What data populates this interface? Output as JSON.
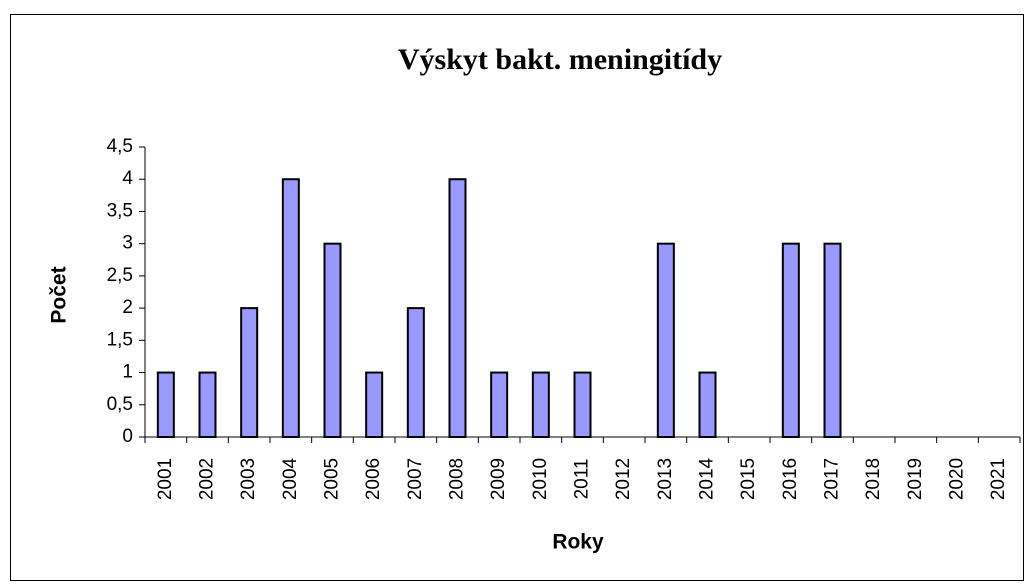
{
  "chart_data": {
    "type": "bar",
    "title": "Výskyt bakt. meningitídy",
    "x_label": "Roky",
    "y_label": "Počet",
    "categories": [
      "2001",
      "2002",
      "2003",
      "2004",
      "2005",
      "2006",
      "2007",
      "2008",
      "2009",
      "2010",
      "2011",
      "2012",
      "2013",
      "2014",
      "2015",
      "2016",
      "2017",
      "2018",
      "2019",
      "2020",
      "2021"
    ],
    "values": [
      1,
      1,
      2,
      4,
      3,
      1,
      2,
      4,
      1,
      1,
      1,
      0,
      3,
      1,
      0,
      3,
      3,
      0,
      0,
      0,
      0
    ],
    "color": "#9999ff",
    "ylim": [
      0,
      4.5
    ],
    "yticks": [
      0,
      {
        "value": 0.5,
        "label": "0,5"
      },
      1,
      {
        "value": 1.5,
        "label": "1,5"
      },
      2,
      {
        "value": 2.5,
        "label": "2,5"
      },
      3,
      {
        "value": 3.5,
        "label": "3,5"
      },
      4,
      {
        "value": 4.5,
        "label": "4,5"
      }
    ],
    "grid": false
  }
}
